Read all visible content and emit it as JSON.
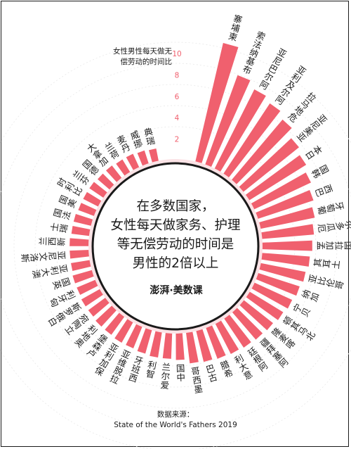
{
  "chart_data": {
    "type": "radial-bar",
    "title": "在多数国家，女性每天做家务、护理等无偿劳动的时间是男性的2倍以上",
    "legend_title": "女性男性每天做无偿劳动的时间比",
    "axis_ticks": [
      2,
      4,
      6,
      8,
      10
    ],
    "rlim": [
      0,
      10
    ],
    "bar_color": "#f0606e",
    "categories": [
      "柬埔寨",
      "布基纳法索",
      "阿尔巴尼亚",
      "阿尔及利亚",
      "危地马拉",
      "亚美尼亚",
      "日本",
      "韩国",
      "巴西",
      "葡萄牙",
      "厄瓜多尔",
      "孟加拉国",
      "土耳其",
      "哥伦比亚",
      "加纳",
      "贝宁",
      "北马其顿",
      "喀麦隆",
      "阿塞拜疆",
      "阿根廷",
      "意大利",
      "希腊",
      "古巴",
      "墨西哥",
      "中国",
      "爱尔兰",
      "智利",
      "西班牙",
      "拉脱维亚",
      "保加利亚",
      "卢森堡",
      "奥地利",
      "立陶宛",
      "白俄罗斯",
      "匈牙利",
      "英国",
      "澳大利亚",
      "斯洛文尼亚",
      "新西兰",
      "瑞士",
      "法国",
      "美国",
      "比利时",
      "芬兰",
      "德国",
      "加拿大",
      "荷兰",
      "丹麦",
      "挪威",
      "瑞典"
    ],
    "values": [
      11.5,
      9.0,
      8.4,
      8.0,
      7.5,
      6.8,
      6.4,
      6.0,
      5.6,
      5.3,
      5.0,
      4.8,
      4.6,
      4.4,
      4.2,
      4.0,
      3.8,
      3.6,
      3.5,
      3.4,
      3.3,
      3.2,
      3.1,
      3.0,
      2.6,
      2.5,
      2.5,
      2.4,
      2.3,
      2.3,
      2.2,
      2.2,
      2.1,
      2.1,
      2.0,
      2.0,
      1.9,
      1.9,
      1.9,
      1.8,
      1.8,
      1.7,
      1.7,
      1.7,
      1.6,
      1.6,
      1.5,
      1.5,
      1.4,
      1.3
    ]
  },
  "center_text": [
    "在多数国家，",
    "女性每天做家务、护理",
    "等无偿劳动的时间是",
    "男性的2倍以上"
  ],
  "logo_text": "澎湃·美数课",
  "source_label": "数据来源：",
  "source_name": "State of the World's Fathers 2019"
}
